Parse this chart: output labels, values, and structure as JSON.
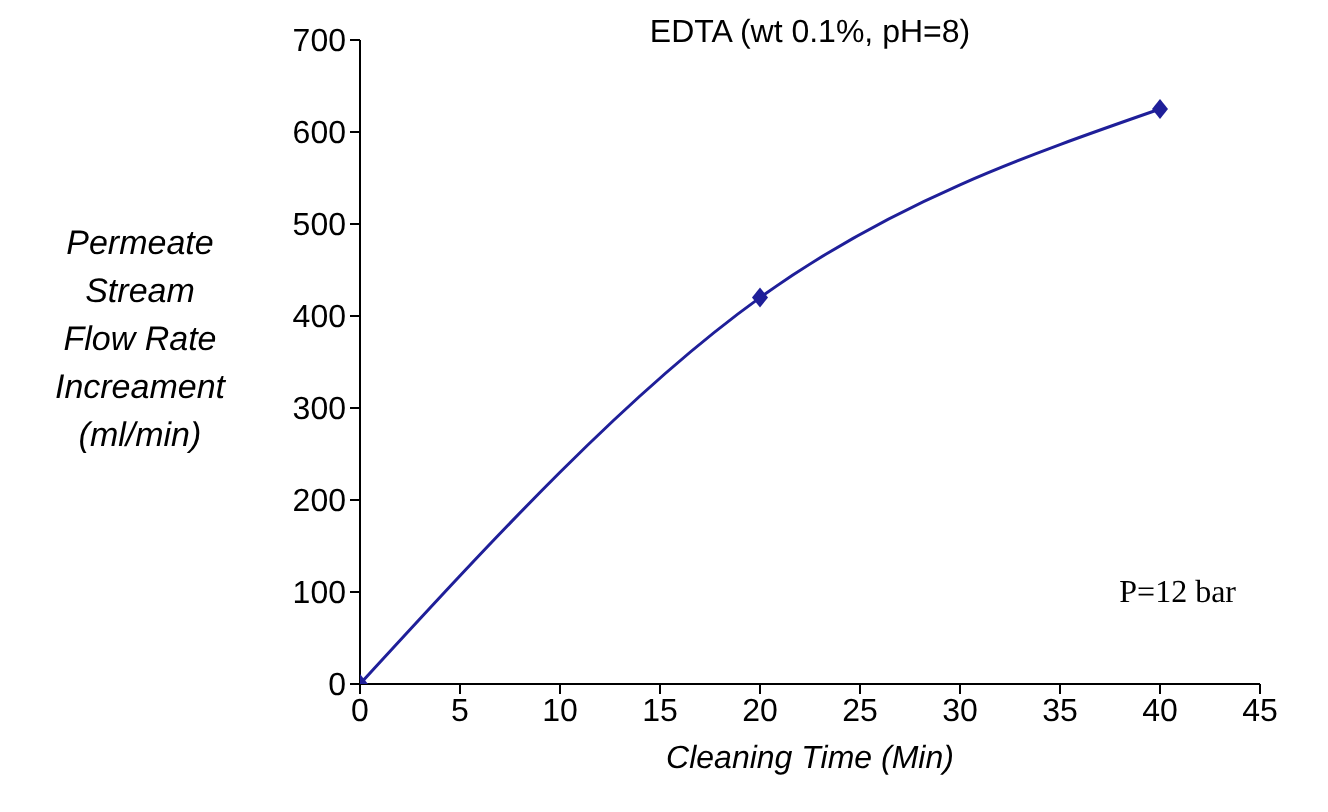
{
  "chart_data": {
    "type": "line",
    "title": "EDTA (wt 0.1%, pH=8)",
    "xlabel": "Cleaning Time (Min)",
    "ylabel": "Permeate Stream Flow Rate Increament (ml/min)",
    "x": [
      0,
      20,
      40
    ],
    "series": [
      {
        "color": "#1f1f99",
        "values": [
          0,
          420,
          625
        ]
      }
    ],
    "xlim": [
      0,
      45
    ],
    "xticks": [
      0,
      5,
      10,
      15,
      20,
      25,
      30,
      35,
      40,
      45
    ],
    "ylim": [
      0,
      700
    ],
    "yticks": [
      0,
      100,
      200,
      300,
      400,
      500,
      600,
      700
    ],
    "marker": "diamond",
    "annotations": [
      "P=12 bar"
    ]
  }
}
